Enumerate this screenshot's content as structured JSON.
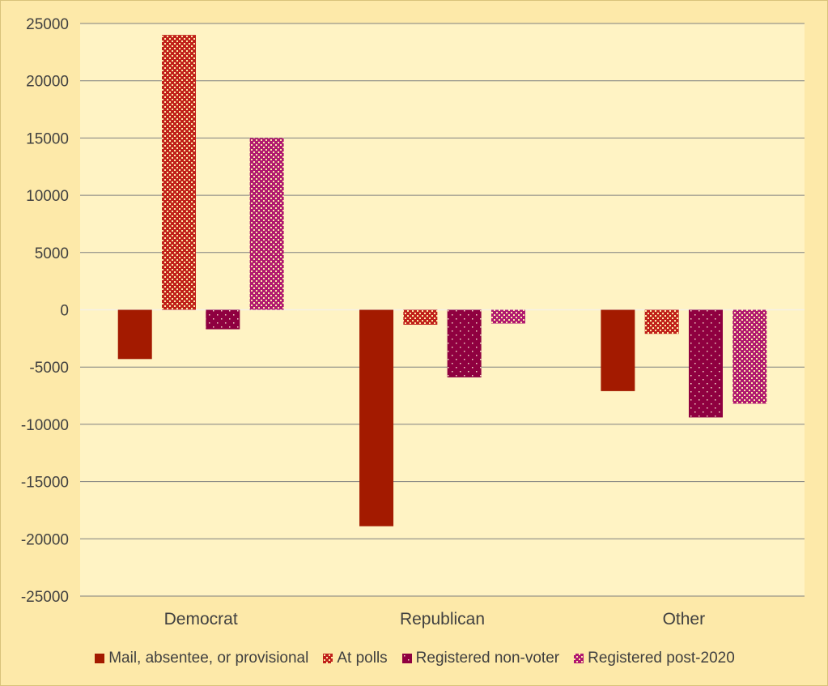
{
  "chart_data": {
    "type": "bar",
    "title": "",
    "xlabel": "",
    "ylabel": "",
    "categories": [
      "Democrat",
      "Republican",
      "Other"
    ],
    "ylim": [
      -25000,
      25000
    ],
    "yticks": [
      25000,
      20000,
      15000,
      10000,
      5000,
      0,
      -5000,
      -10000,
      -15000,
      -20000,
      -25000
    ],
    "grid": true,
    "legend_position": "bottom",
    "series": [
      {
        "name": "Mail, absentee, or provisional",
        "values": [
          -4300,
          -18900,
          -7100
        ],
        "color": "#a31a00",
        "pattern": "solid"
      },
      {
        "name": "At polls",
        "values": [
          24000,
          -1300,
          -2100
        ],
        "color": "#c0201a",
        "pattern": "dense-dots"
      },
      {
        "name": "Registered non-voter",
        "values": [
          -1700,
          -5900,
          -9400
        ],
        "color": "#8f0040",
        "pattern": "sparse-dots"
      },
      {
        "name": "Registered post-2020",
        "values": [
          15000,
          -1200,
          -8200
        ],
        "color": "#b01870",
        "pattern": "checker"
      }
    ]
  }
}
